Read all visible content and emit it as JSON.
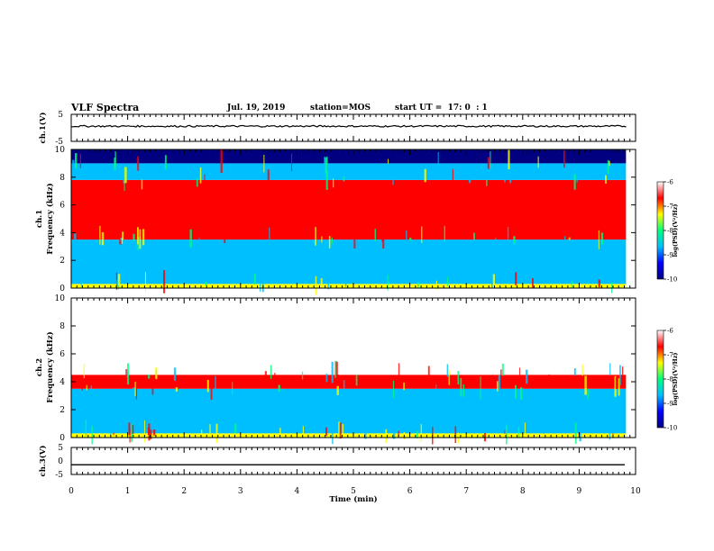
{
  "header": {
    "title": "VLF Spectra",
    "date": "Jul. 19, 2019",
    "station": "station=MOS",
    "start": "start UT =  17: 0  : 1"
  },
  "colors": {
    "scale": [
      "#000080",
      "#0000ff",
      "#00bfff",
      "#00ff80",
      "#ffff00",
      "#ff0000",
      "#ffffff"
    ]
  },
  "chart_data": [
    {
      "type": "line",
      "name": "ch1-waveform",
      "ylabel": "ch.1(V)",
      "ylim": [
        -5,
        5
      ],
      "yticks": [
        "5",
        "-5"
      ],
      "series": [
        {
          "values": [
            0.6
          ]
        }
      ]
    },
    {
      "type": "heatmap",
      "name": "ch1-spectrogram",
      "ylabel_line1": "ch.1",
      "ylabel_line2": "Frequency (kHz)",
      "ylim": [
        0,
        10
      ],
      "yticks": [
        "0",
        "2",
        "4",
        "6",
        "8",
        "10"
      ],
      "colorbar": {
        "label": "log(PSD)(V²/Hz)",
        "range": [
          -10,
          -6
        ],
        "ticks": [
          "-6",
          "-7",
          "-8",
          "-9",
          "-10"
        ]
      },
      "bands": [
        {
          "kHz": [
            0,
            0.3
          ],
          "log_psd": -7.5
        },
        {
          "kHz": [
            0.3,
            3.5
          ],
          "log_psd": -8.8
        },
        {
          "kHz": [
            3.5,
            7.8
          ],
          "log_psd": -6.8
        },
        {
          "kHz": [
            7.8,
            9.0
          ],
          "log_psd": -8.5
        },
        {
          "kHz": [
            9.0,
            10
          ],
          "log_psd": -10
        }
      ]
    },
    {
      "type": "heatmap",
      "name": "ch2-spectrogram",
      "ylabel_line1": "ch.2",
      "ylabel_line2": "Frequency (kHz)",
      "ylim": [
        0,
        10
      ],
      "yticks": [
        "0",
        "2",
        "4",
        "6",
        "8",
        "10"
      ],
      "colorbar": {
        "label": "log(PSD)(V²/Hz)",
        "range": [
          -10,
          -6
        ],
        "ticks": [
          "-6",
          "-7",
          "-8",
          "-9",
          "-10"
        ]
      },
      "bands": [
        {
          "kHz": [
            0,
            0.3
          ],
          "log_psd": -7.5
        },
        {
          "kHz": [
            0.3,
            3.5
          ],
          "log_psd": -8.8
        },
        {
          "kHz": [
            3.5,
            4.5
          ],
          "log_psd": -6.8
        },
        {
          "kHz": [
            4.5,
            10
          ],
          "log_psd": -6.1
        }
      ]
    },
    {
      "type": "line",
      "name": "ch3-waveform",
      "ylabel": "ch.3(V)",
      "ylim": [
        -5,
        5
      ],
      "yticks": [
        "5",
        "0",
        "-5"
      ],
      "series": [
        {
          "values": [
            -1.4
          ]
        }
      ]
    }
  ],
  "xaxis": {
    "label": "Time (min)",
    "xlim": [
      0,
      10
    ],
    "ticks": [
      "0",
      "1",
      "2",
      "3",
      "4",
      "5",
      "6",
      "7",
      "8",
      "9",
      "10"
    ]
  }
}
